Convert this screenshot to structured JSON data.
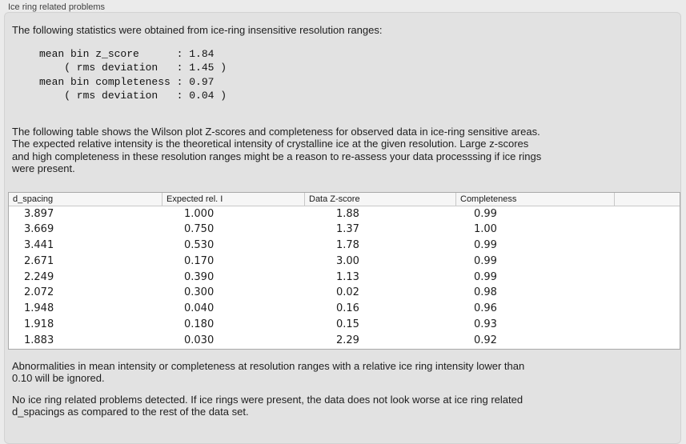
{
  "panel": {
    "title": "Ice ring related problems"
  },
  "statistics": {
    "intro": "The following statistics were obtained from ice-ring insensitive resolution ranges:",
    "block": "mean bin z_score      : 1.84\n    ( rms deviation   : 1.45 )\nmean bin completeness : 0.97\n    ( rms deviation   : 0.04 )",
    "mean_bin_z_score": "1.84",
    "z_score_rms_deviation": "1.45",
    "mean_bin_completeness": "0.97",
    "completeness_rms_deviation": "0.04"
  },
  "description": "The following table shows the Wilson plot Z-scores and completeness for observed data in ice-ring sensitive areas.\nThe expected relative intensity is the theoretical intensity of crystalline ice at the given resolution. Large z-scores\nand high completeness in these resolution ranges might be a reason to re-assess your data processsing if ice rings\nwere present.",
  "table": {
    "columns": [
      "d_spacing",
      "Expected rel. I",
      "Data Z-score",
      "Completeness",
      ""
    ],
    "rows": [
      [
        "3.897",
        "1.000",
        "1.88",
        "0.99"
      ],
      [
        "3.669",
        "0.750",
        "1.37",
        "1.00"
      ],
      [
        "3.441",
        "0.530",
        "1.78",
        "0.99"
      ],
      [
        "2.671",
        "0.170",
        "3.00",
        "0.99"
      ],
      [
        "2.249",
        "0.390",
        "1.13",
        "0.99"
      ],
      [
        "2.072",
        "0.300",
        "0.02",
        "0.98"
      ],
      [
        "1.948",
        "0.040",
        "0.16",
        "0.96"
      ],
      [
        "1.918",
        "0.180",
        "0.15",
        "0.93"
      ],
      [
        "1.883",
        "0.030",
        "2.29",
        "0.92"
      ]
    ]
  },
  "notes": {
    "threshold": "Abnormalities in mean intensity or completeness at resolution ranges with a relative ice ring intensity lower than\n0.10 will be ignored.",
    "conclusion": "No ice ring related problems detected. If ice rings were present, the data does not look worse at ice ring related\nd_spacings as compared to the rest of the data set."
  },
  "colors": {
    "window_bg": "#ebebeb",
    "panel_bg": "#e2e2e2",
    "table_bg": "#ffffff",
    "header_bg": "#f6f6f6",
    "table_border": "#a9a9a9",
    "separator": "#c8c8c8",
    "text": "#1d1d1d",
    "label_text": "#3f3f3f"
  }
}
